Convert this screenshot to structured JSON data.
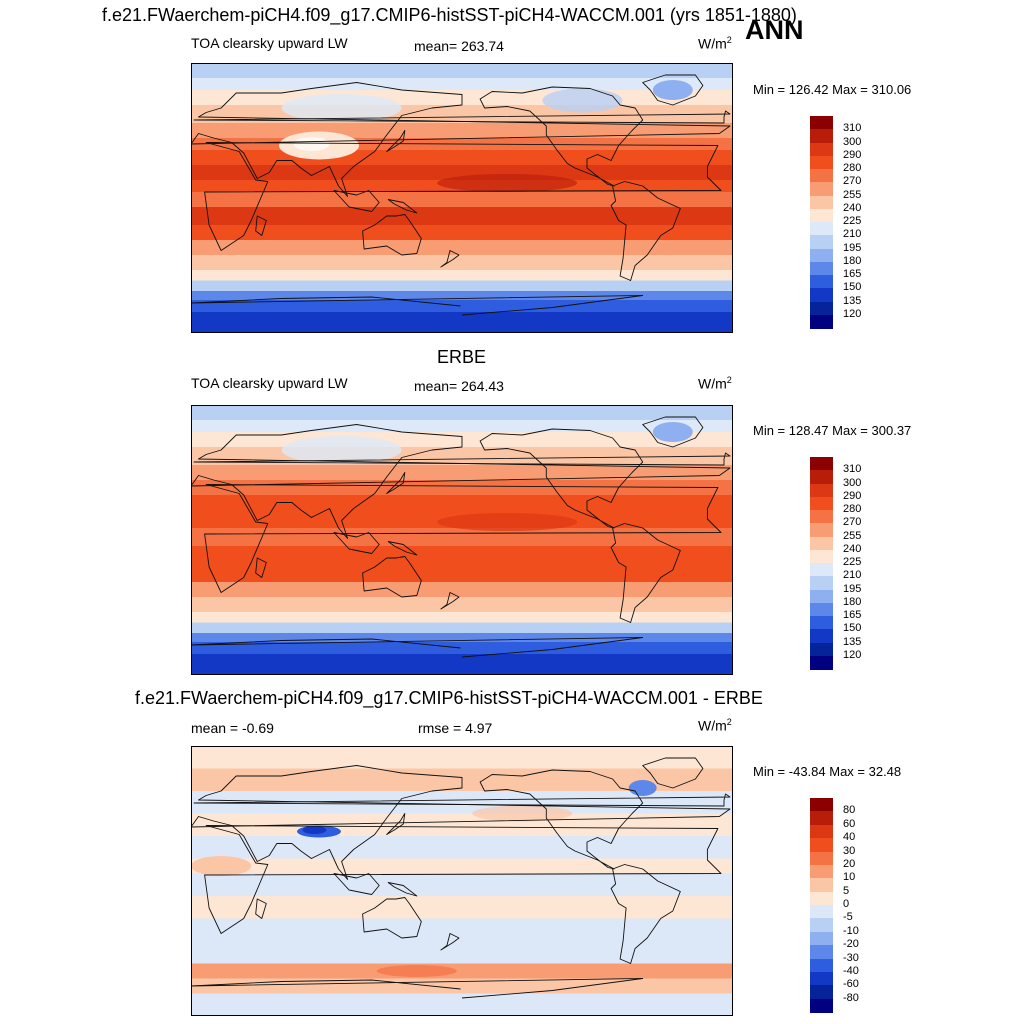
{
  "figure": {
    "season": "ANN"
  },
  "panels": [
    {
      "title": "f.e21.FWaerchem-piCH4.f09_g17.CMIP6-histSST-piCH4-WACCM.001 (yrs 1851-1880)",
      "left_label": "TOA clearsky upward LW",
      "center_label": "mean= 263.74",
      "units": "W/m",
      "units_sup": "2",
      "minmax": "Min = 126.42 Max = 310.06",
      "field": "model",
      "colorbar": {
        "labels": [
          "310",
          "300",
          "290",
          "280",
          "270",
          "255",
          "240",
          "225",
          "210",
          "195",
          "180",
          "165",
          "150",
          "135",
          "120"
        ],
        "colors": [
          "#8b0000",
          "#b81d0a",
          "#dd3814",
          "#f04e1c",
          "#f47244",
          "#f89c74",
          "#fbc6a6",
          "#fde6d4",
          "#dde9f8",
          "#b9d0f5",
          "#8fb0f0",
          "#5e87ea",
          "#2f5de0",
          "#1438c6",
          "#06249a",
          "#000080"
        ]
      }
    },
    {
      "title": "ERBE",
      "left_label": "TOA clearsky upward LW",
      "center_label": "mean= 264.43",
      "units": "W/m",
      "units_sup": "2",
      "minmax": "Min = 128.47 Max = 300.37",
      "field": "obs",
      "colorbar": {
        "labels": [
          "310",
          "300",
          "290",
          "280",
          "270",
          "255",
          "240",
          "225",
          "210",
          "195",
          "180",
          "165",
          "150",
          "135",
          "120"
        ],
        "colors": [
          "#8b0000",
          "#b81d0a",
          "#dd3814",
          "#f04e1c",
          "#f47244",
          "#f89c74",
          "#fbc6a6",
          "#fde6d4",
          "#dde9f8",
          "#b9d0f5",
          "#8fb0f0",
          "#5e87ea",
          "#2f5de0",
          "#1438c6",
          "#06249a",
          "#000080"
        ]
      }
    },
    {
      "title": "f.e21.FWaerchem-piCH4.f09_g17.CMIP6-histSST-piCH4-WACCM.001 - ERBE",
      "left_label": "mean =  -0.69",
      "center_label": "rmse =   4.97",
      "units": "W/m",
      "units_sup": "2",
      "minmax": "Min = -43.84 Max =  32.48",
      "field": "diff",
      "colorbar": {
        "labels": [
          "80",
          "60",
          "40",
          "30",
          "20",
          "10",
          "5",
          "0",
          "-5",
          "-10",
          "-20",
          "-30",
          "-40",
          "-60",
          "-80"
        ],
        "colors": [
          "#8b0000",
          "#b81d0a",
          "#dd3814",
          "#f04e1c",
          "#f47244",
          "#f89c74",
          "#fbc6a6",
          "#fde6d4",
          "#dce8f8",
          "#b9d0f5",
          "#8fb0f0",
          "#5e87ea",
          "#2f5de0",
          "#1438c6",
          "#06249a",
          "#000080"
        ]
      }
    }
  ]
}
